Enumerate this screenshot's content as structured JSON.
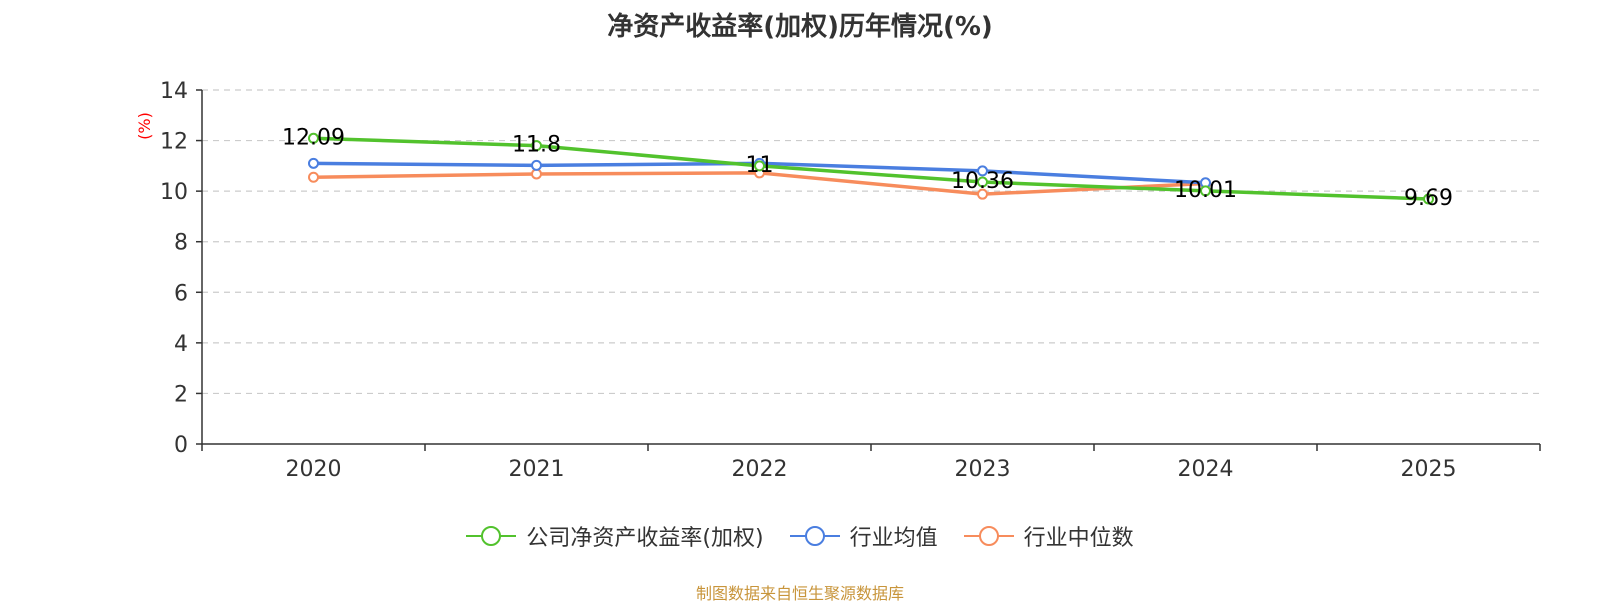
{
  "title": "净资产收益率(加权)历年情况(%)",
  "source_note": "制图数据来自恒生聚源数据库",
  "colors": {
    "company": "#52c22d",
    "industry_avg": "#4a7ee0",
    "industry_median": "#f78c5c",
    "axis": "#333333",
    "grid": "#cccccc",
    "ylabel": "#ff0000"
  },
  "chart_data": {
    "type": "line",
    "title": "净资产收益率(加权)历年情况(%)",
    "xlabel": "",
    "ylabel": "(%)",
    "categories": [
      "2020",
      "2021",
      "2022",
      "2023",
      "2024",
      "2025"
    ],
    "ylim": [
      0,
      14
    ],
    "yticks": [
      0,
      2,
      4,
      6,
      8,
      10,
      12,
      14
    ],
    "grid": true,
    "legend_position": "bottom-center",
    "series": [
      {
        "name": "公司净资产收益率(加权)",
        "color_key": "company",
        "values": [
          12.09,
          11.8,
          11,
          10.36,
          10.01,
          9.69
        ],
        "labels": [
          "12.09",
          "11.8",
          "11",
          "10.36",
          "10.01",
          "9.69"
        ]
      },
      {
        "name": "行业均值",
        "color_key": "industry_avg",
        "values": [
          11.1,
          11.02,
          11.1,
          10.8,
          10.33,
          null
        ],
        "labels": []
      },
      {
        "name": "行业中位数",
        "color_key": "industry_median",
        "values": [
          10.55,
          10.68,
          10.72,
          9.88,
          10.3,
          null
        ],
        "labels": []
      }
    ]
  }
}
